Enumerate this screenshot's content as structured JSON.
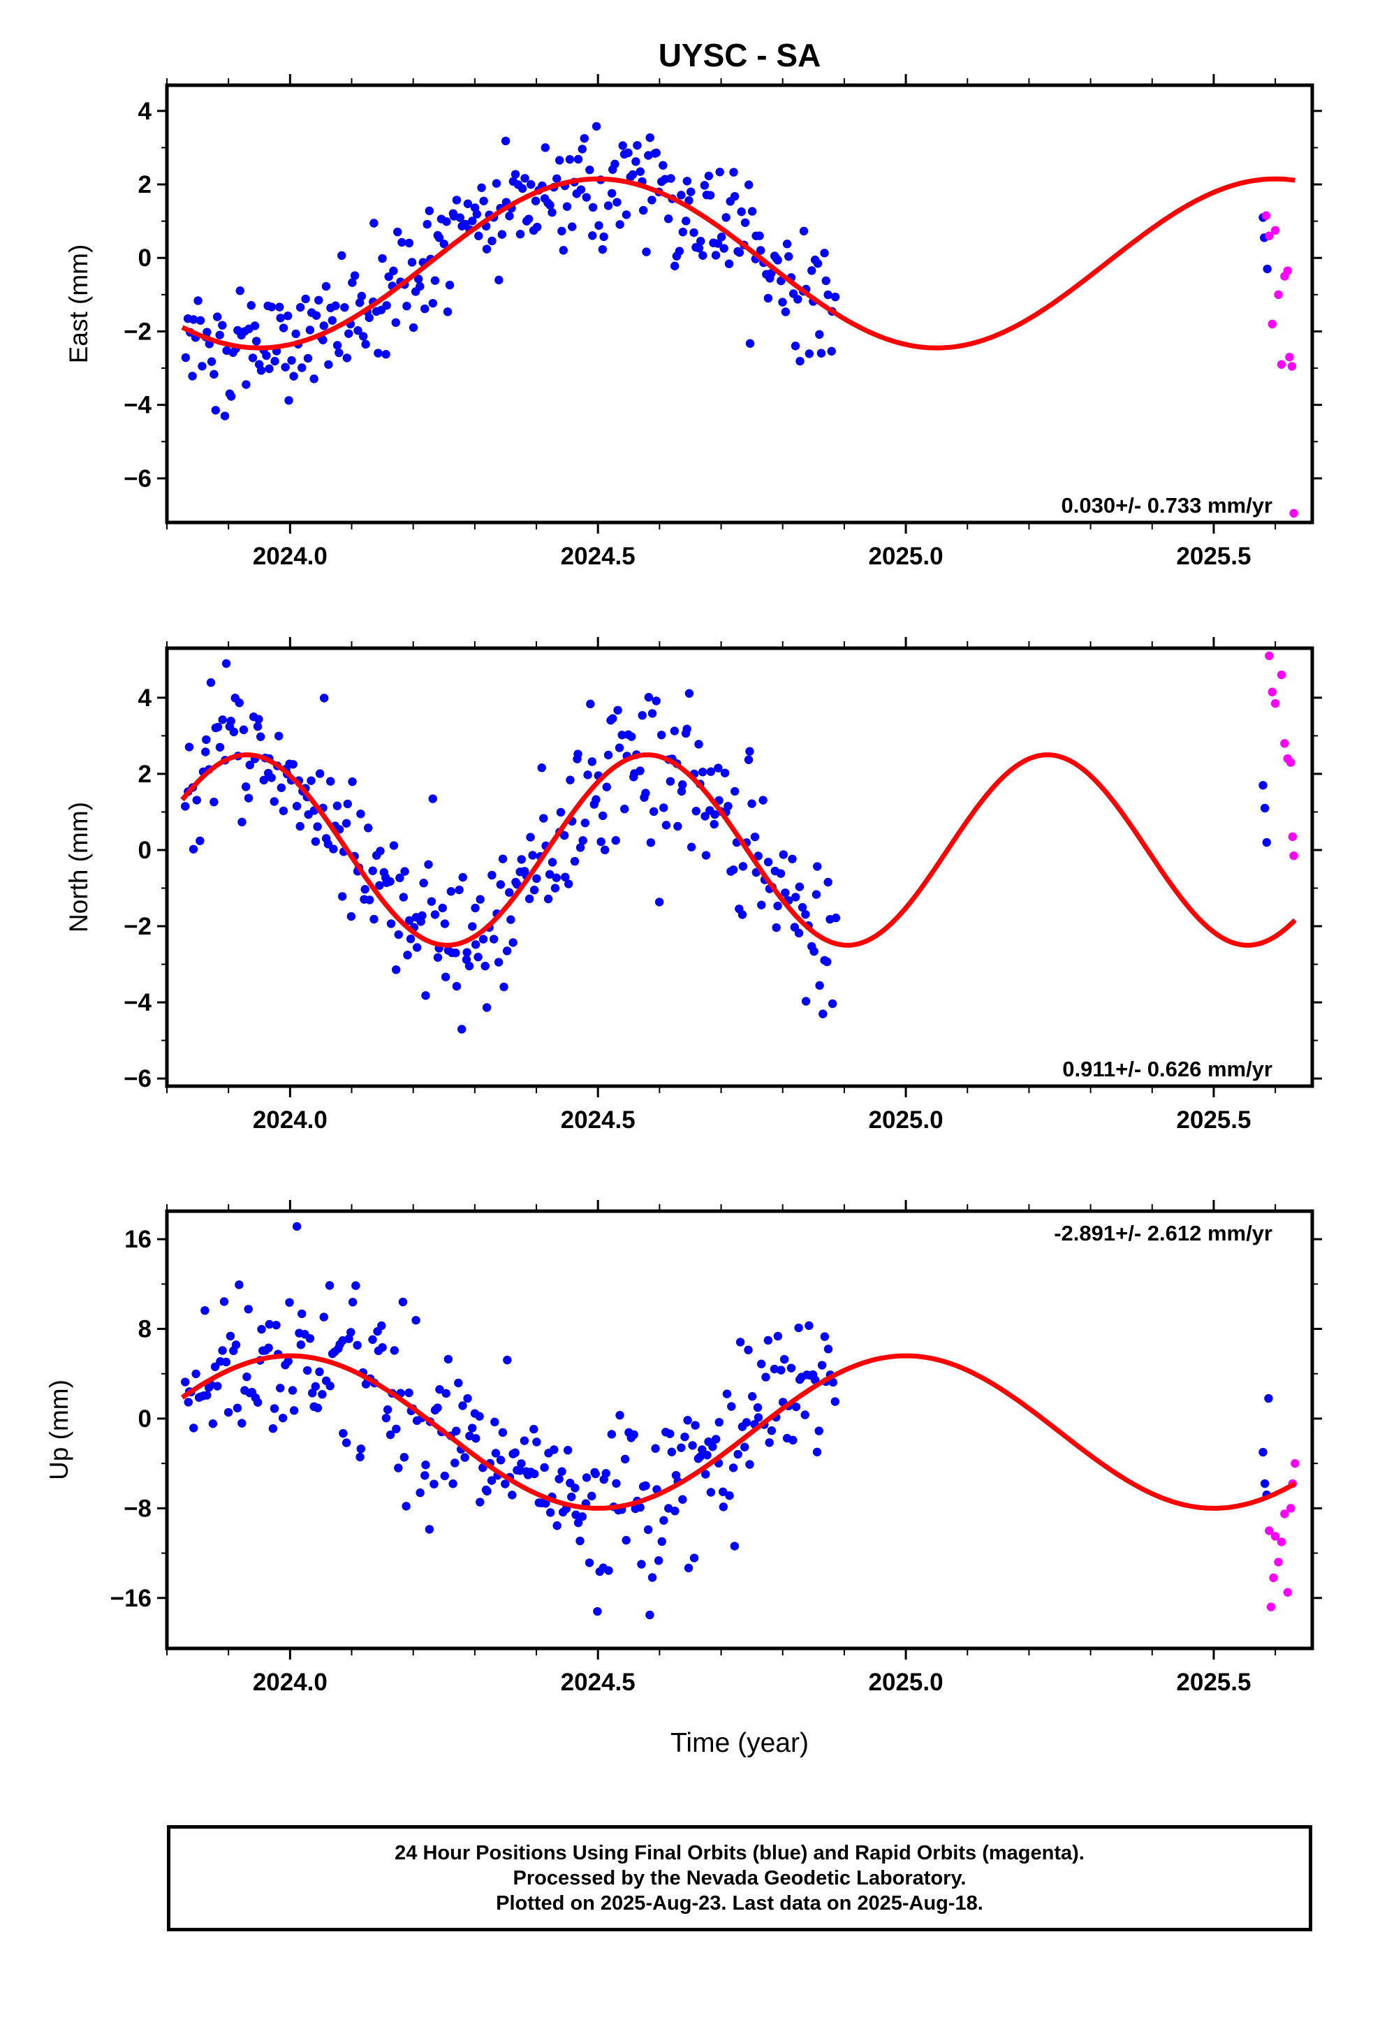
{
  "chart_data": {
    "type": "scatter",
    "title": "UYSC - SA",
    "xlabel": "Time (year)",
    "xlim": [
      2023.8,
      2025.66
    ],
    "xticks": [
      "2024.0",
      "2024.5",
      "2025.0",
      "2025.5"
    ],
    "series_names": {
      "final": "Final Orbits (blue)",
      "rapid": "Rapid Orbits (magenta)"
    },
    "colors": {
      "final": "#0000ff",
      "rapid": "#ff00ff",
      "model": "#ff0000",
      "frame": "#000000"
    },
    "panels": [
      {
        "ylabel": "East (mm)",
        "ylim": [
          -7.2,
          4.7
        ],
        "yticks": [
          "4",
          "2",
          "0",
          "−2",
          "−4",
          "−6"
        ],
        "rate": "0.030+/- 0.733 mm/yr",
        "rate_position": "bottom-right",
        "model": {
          "mean": -0.15,
          "amplitude": 2.3,
          "peak": 2024.5,
          "period": 1.1
        },
        "scatter": {
          "start": 2023.83,
          "end": 2024.885,
          "sigma": 0.75,
          "spike": 0.04
        },
        "rapid": [
          [
            2025.585,
            1.15
          ],
          [
            2025.59,
            0.6
          ],
          [
            2025.595,
            -1.8
          ],
          [
            2025.6,
            0.75
          ],
          [
            2025.605,
            -1.0
          ],
          [
            2025.61,
            -2.9
          ],
          [
            2025.615,
            -0.5
          ],
          [
            2025.62,
            -0.35
          ],
          [
            2025.623,
            -2.7
          ],
          [
            2025.627,
            -2.95
          ],
          [
            2025.63,
            -6.95
          ]
        ],
        "final_tail": [
          [
            2025.58,
            1.1
          ],
          [
            2025.582,
            0.55
          ],
          [
            2025.587,
            -0.3
          ]
        ]
      },
      {
        "ylabel": "North (mm)",
        "ylim": [
          -6.2,
          5.3
        ],
        "yticks": [
          "4",
          "2",
          "0",
          "−2",
          "−4",
          "−6"
        ],
        "rate": "0.911+/- 0.626 mm/yr",
        "rate_position": "bottom-right",
        "model": {
          "mean": 0.0,
          "amplitude": 2.5,
          "peak": 2024.58,
          "period": 0.65
        },
        "scatter": {
          "start": 2023.83,
          "end": 2024.885,
          "sigma": 0.95,
          "spike": 0.04
        },
        "rapid": [
          [
            2025.59,
            5.1
          ],
          [
            2025.595,
            4.15
          ],
          [
            2025.6,
            3.85
          ],
          [
            2025.61,
            4.6
          ],
          [
            2025.615,
            2.8
          ],
          [
            2025.62,
            2.4
          ],
          [
            2025.625,
            2.3
          ],
          [
            2025.628,
            0.35
          ],
          [
            2025.63,
            -0.15
          ]
        ],
        "final_tail": [
          [
            2025.58,
            1.7
          ],
          [
            2025.583,
            1.1
          ],
          [
            2025.586,
            0.2
          ]
        ]
      },
      {
        "ylabel": "Up (mm)",
        "ylim": [
          -20.5,
          18.5
        ],
        "yticks": [
          "16",
          "8",
          "0",
          "−8",
          "−16"
        ],
        "rate": "-2.891+/- 2.612 mm/yr",
        "rate_position": "top-right",
        "model": {
          "mean": -1.2,
          "amplitude": 6.8,
          "peak": 2024.0,
          "period": 1.0
        },
        "scatter": {
          "start": 2023.83,
          "end": 2024.885,
          "sigma": 3.7,
          "spike": 0.05
        },
        "rapid": [
          [
            2025.59,
            -10.0
          ],
          [
            2025.593,
            -16.8
          ],
          [
            2025.597,
            -14.2
          ],
          [
            2025.6,
            -10.5
          ],
          [
            2025.605,
            -12.8
          ],
          [
            2025.61,
            -11.0
          ],
          [
            2025.615,
            -8.5
          ],
          [
            2025.62,
            -15.5
          ],
          [
            2025.625,
            -8.0
          ],
          [
            2025.628,
            -5.8
          ],
          [
            2025.632,
            -4.0
          ]
        ],
        "final_tail": [
          [
            2025.58,
            -3.0
          ],
          [
            2025.583,
            -5.8
          ],
          [
            2025.586,
            -6.8
          ],
          [
            2025.589,
            1.8
          ]
        ]
      }
    ]
  },
  "caption": {
    "line1": "24 Hour Positions Using Final Orbits (blue) and Rapid Orbits (magenta).",
    "line2": "Processed by the Nevada Geodetic Laboratory.",
    "line3": "Plotted on 2025-Aug-23. Last data on 2025-Aug-18."
  }
}
